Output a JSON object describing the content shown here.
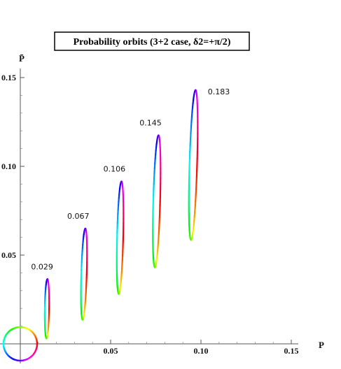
{
  "chart_data": {
    "type": "line",
    "title": "Probability orbits (3+2 case, δ2=+π/2)",
    "xlabel": "P",
    "ylabel": "P̄",
    "xlim": [
      -0.003,
      0.155
    ],
    "ylim": [
      -0.008,
      0.155
    ],
    "x_ticks": [
      0.05,
      0.1,
      0.15
    ],
    "x_tick_labels": [
      "0.05",
      "0.10",
      "0.15"
    ],
    "y_ticks": [
      0.05,
      0.1,
      0.15
    ],
    "y_tick_labels": [
      "0.05",
      "0.10",
      "0.15"
    ],
    "grid": false,
    "legend": "circular color wheel at origin (phase δ)",
    "series": [
      {
        "label": "0.029",
        "bottom": [
          0.0145,
          0.003
        ],
        "top": [
          0.015,
          0.0365
        ],
        "width": 0.0012
      },
      {
        "label": "0.067",
        "bottom": [
          0.0345,
          0.0135
        ],
        "top": [
          0.036,
          0.065
        ],
        "width": 0.0015
      },
      {
        "label": "0.106",
        "bottom": [
          0.0545,
          0.028
        ],
        "top": [
          0.056,
          0.0915
        ],
        "width": 0.0017
      },
      {
        "label": "0.145",
        "bottom": [
          0.0745,
          0.043
        ],
        "top": [
          0.0765,
          0.1175
        ],
        "width": 0.0019
      },
      {
        "label": "0.183",
        "bottom": [
          0.0945,
          0.0585
        ],
        "top": [
          0.097,
          0.143
        ],
        "width": 0.0021
      }
    ],
    "colors": {
      "wheel": [
        "#ff0000",
        "#ffff00",
        "#00ff00",
        "#00ffff",
        "#0000ff",
        "#ff00ff"
      ]
    }
  }
}
